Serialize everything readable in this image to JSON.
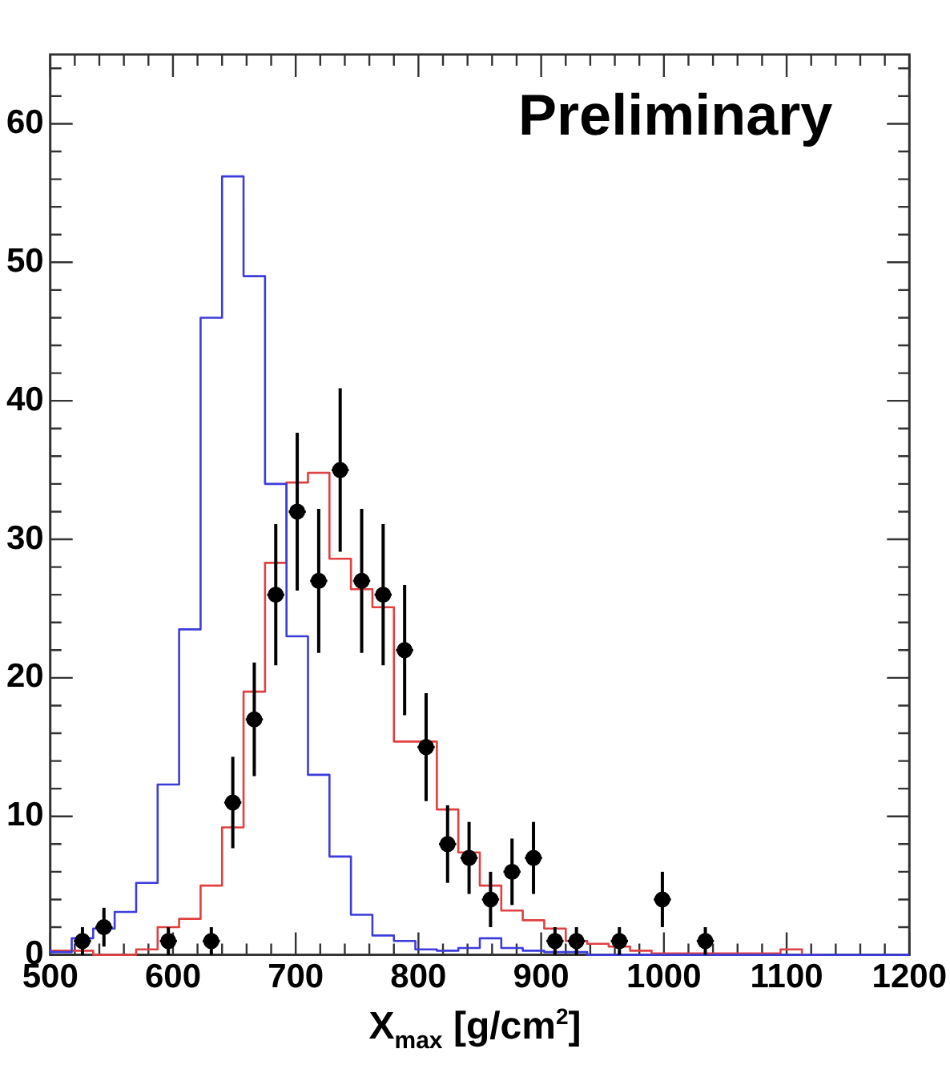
{
  "chart_data": {
    "type": "step",
    "annotations": [
      "Preliminary"
    ],
    "xlabel": "X$_{max}$ [g/cm$^{2}$]",
    "x": [
      500,
      517.5,
      535,
      552.5,
      570,
      587.5,
      605,
      622.5,
      640,
      657.5,
      675,
      692.5,
      710,
      727.5,
      745,
      762.5,
      780,
      797.5,
      815,
      832.5,
      850,
      867.5,
      885,
      902.5,
      920,
      937.5,
      955,
      972.5,
      990,
      1007.5,
      1025,
      1042.5,
      1060,
      1077.5,
      1095,
      1112.5,
      1130,
      1147.5,
      1165,
      1182.5,
      1200
    ],
    "series": [
      {
        "color": "#3c3cdc",
        "values": [
          0.4,
          0.2,
          1.2,
          1.9,
          3.1,
          5.2,
          12.3,
          23.5,
          46,
          56.2,
          49,
          34,
          23,
          13,
          7.1,
          2.9,
          1.4,
          1.0,
          0.4,
          0.3,
          0.5,
          1.2,
          0.5,
          0.3,
          0.2,
          0.2,
          0,
          0,
          0,
          0,
          0,
          0,
          0,
          0,
          0,
          0,
          0,
          0,
          0,
          0,
          0
        ]
      },
      {
        "color": "#e04040",
        "values": [
          0.3,
          0.3,
          0.3,
          0,
          0,
          0.4,
          2.0,
          2.6,
          5.0,
          9.2,
          19,
          28.3,
          34.1,
          34.8,
          28.6,
          26.4,
          25.1,
          15.4,
          15.4,
          10.5,
          7.4,
          5.0,
          3.2,
          2.5,
          1.9,
          1.0,
          0.8,
          0.6,
          0.3,
          0.1,
          0.1,
          0.1,
          0.1,
          0.1,
          0.1,
          0.4,
          0,
          null,
          null,
          null,
          null
        ]
      },
      {
        "type": "scatter",
        "marker": "circle",
        "color": "#000000",
        "x": [
          526.25,
          543.75,
          596.25,
          631.25,
          648.75,
          666.25,
          683.75,
          701.25,
          718.75,
          736.25,
          753.75,
          771.25,
          788.75,
          806.25,
          823.75,
          841.25,
          858.75,
          876.25,
          893.75,
          911.25,
          928.75,
          963.75,
          998.75,
          1033.75
        ],
        "values": [
          1,
          2,
          1,
          1,
          11,
          17,
          26,
          32,
          27,
          35,
          27,
          26,
          22,
          15,
          8,
          7,
          4,
          6,
          7,
          1,
          1,
          1,
          4,
          1
        ],
        "errors": [
          1,
          1.4,
          1,
          1,
          3.3,
          4.1,
          5.1,
          5.7,
          5.2,
          5.9,
          5.2,
          5.1,
          4.7,
          3.9,
          2.8,
          2.6,
          2,
          2.4,
          2.6,
          1,
          1,
          1,
          2,
          1
        ],
        "xerrors": [
          7,
          7,
          7,
          7,
          7,
          7,
          7,
          7,
          7,
          7,
          7,
          7,
          7,
          7,
          7,
          7,
          7,
          7,
          7,
          7,
          7,
          7,
          7,
          7
        ]
      }
    ],
    "xlim": [
      500,
      1200
    ],
    "xticks": [
      500,
      {
        "value": 520,
        "label": null
      },
      {
        "value": 540,
        "label": null
      },
      {
        "value": 560,
        "label": null
      },
      {
        "value": 580,
        "label": null
      },
      600,
      {
        "value": 620,
        "label": null
      },
      {
        "value": 640,
        "label": null
      },
      {
        "value": 660,
        "label": null
      },
      {
        "value": 680,
        "label": null
      },
      700,
      {
        "value": 720,
        "label": null
      },
      {
        "value": 740,
        "label": null
      },
      {
        "value": 760,
        "label": null
      },
      {
        "value": 780,
        "label": null
      },
      800,
      {
        "value": 820,
        "label": null
      },
      {
        "value": 840,
        "label": null
      },
      {
        "value": 860,
        "label": null
      },
      {
        "value": 880,
        "label": null
      },
      900,
      {
        "value": 920,
        "label": null
      },
      {
        "value": 940,
        "label": null
      },
      {
        "value": 960,
        "label": null
      },
      {
        "value": 980,
        "label": null
      },
      1000,
      {
        "value": 1020,
        "label": null
      },
      {
        "value": 1040,
        "label": null
      },
      {
        "value": 1060,
        "label": null
      },
      {
        "value": 1080,
        "label": null
      },
      1100,
      {
        "value": 1120,
        "label": null
      },
      {
        "value": 1140,
        "label": null
      },
      {
        "value": 1160,
        "label": null
      },
      {
        "value": 1180,
        "label": null
      },
      1200
    ],
    "ylim": [
      0,
      65
    ],
    "yticks": [
      0,
      {
        "value": 2,
        "label": null
      },
      {
        "value": 4,
        "label": null
      },
      {
        "value": 6,
        "label": null
      },
      {
        "value": 8,
        "label": null
      },
      10,
      {
        "value": 12,
        "label": null
      },
      {
        "value": 14,
        "label": null
      },
      {
        "value": 16,
        "label": null
      },
      {
        "value": 18,
        "label": null
      },
      20,
      {
        "value": 22,
        "label": null
      },
      {
        "value": 24,
        "label": null
      },
      {
        "value": 26,
        "label": null
      },
      {
        "value": 28,
        "label": null
      },
      30,
      {
        "value": 32,
        "label": null
      },
      {
        "value": 34,
        "label": null
      },
      {
        "value": 36,
        "label": null
      },
      {
        "value": 38,
        "label": null
      },
      40,
      {
        "value": 42,
        "label": null
      },
      {
        "value": 44,
        "label": null
      },
      {
        "value": 46,
        "label": null
      },
      {
        "value": 48,
        "label": null
      },
      50,
      {
        "value": 52,
        "label": null
      },
      {
        "value": 54,
        "label": null
      },
      {
        "value": 56,
        "label": null
      },
      {
        "value": 58,
        "label": null
      },
      60,
      {
        "value": 62,
        "label": null
      },
      {
        "value": 64,
        "label": null
      }
    ],
    "grid": false,
    "legend": false
  }
}
